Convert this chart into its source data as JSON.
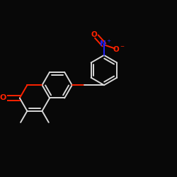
{
  "bg_color": "#080808",
  "bond_color": "#d8d8d8",
  "oxygen_color": "#ff2200",
  "nitrogen_color": "#2222ff",
  "figsize": [
    2.5,
    2.5
  ],
  "dpi": 100,
  "lw": 1.4,
  "font_size": 7.0,
  "BL": 0.088
}
